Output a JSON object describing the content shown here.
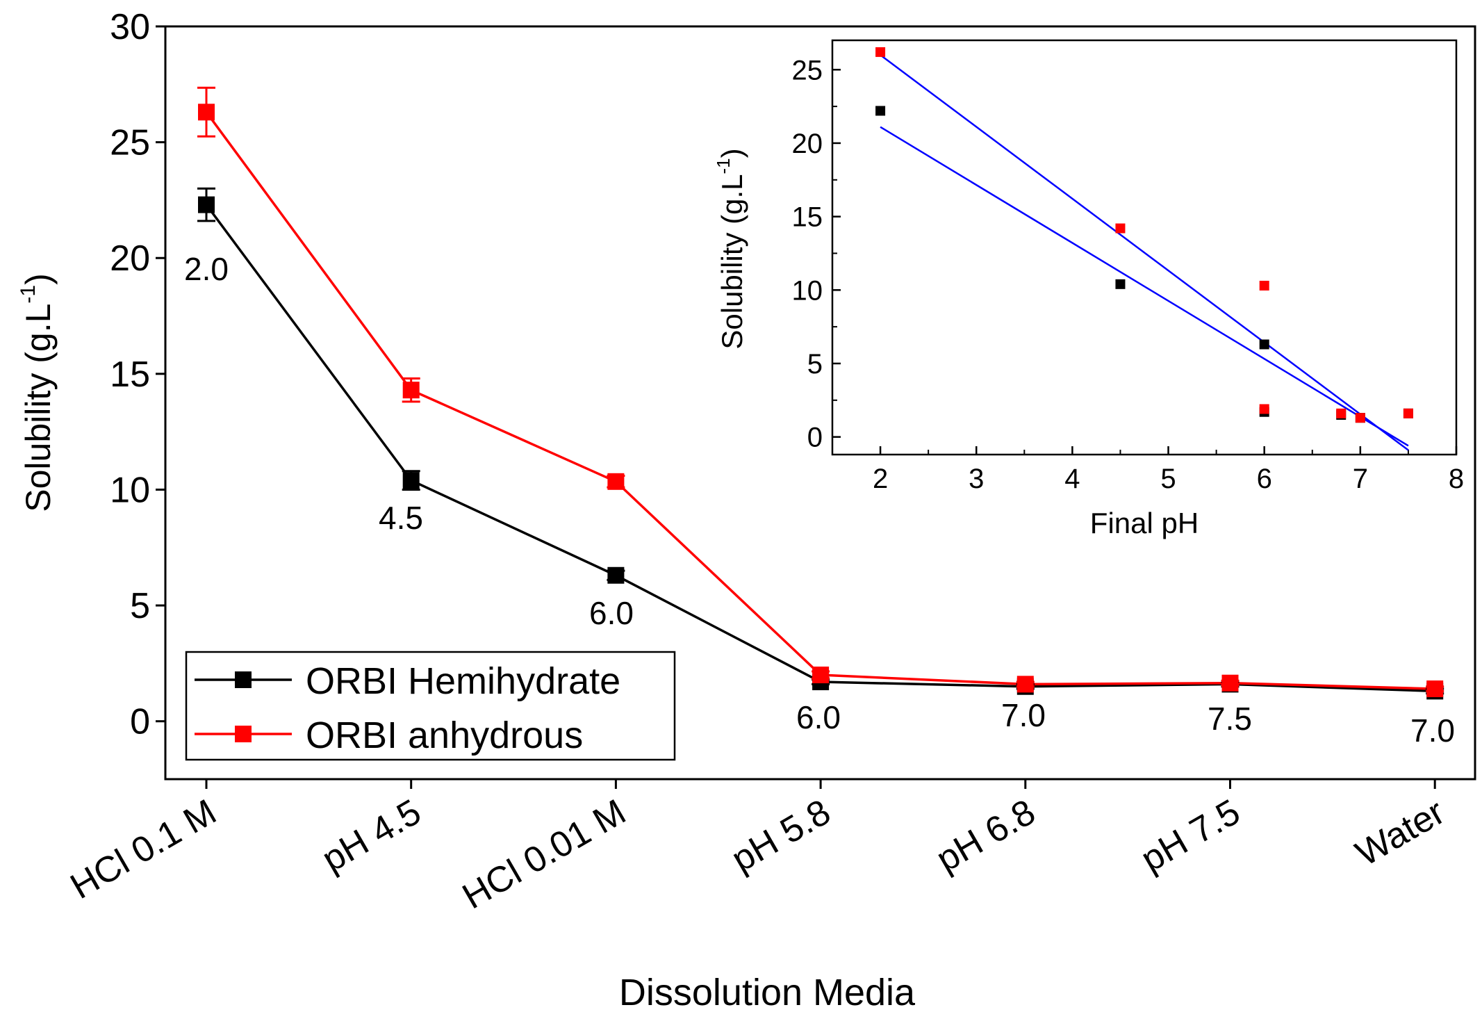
{
  "chart_data": [
    {
      "type": "line",
      "title": "",
      "xlabel": "Dissolution Media",
      "ylabel_main": "Solubility (g.L",
      "ylabel_sup": "-1",
      "ylabel_close": ")",
      "ylim": [
        -2.5,
        30
      ],
      "yticks": [
        0,
        5,
        10,
        15,
        20,
        25,
        30
      ],
      "ytick_labels": [
        "0",
        "5",
        "10",
        "15",
        "20",
        "25",
        "30"
      ],
      "categories": [
        "HCl 0.1 M",
        "pH 4.5",
        "HCl 0.01 M",
        "pH 5.8",
        "pH 6.8",
        "pH 7.5",
        "Water"
      ],
      "series": [
        {
          "name": "ORBI Hemihydrate",
          "color": "#000000",
          "values": [
            22.3,
            10.4,
            6.3,
            1.7,
            1.5,
            1.6,
            1.3
          ],
          "errors": [
            0.7,
            0.4,
            0.2,
            0.1,
            0.1,
            0.1,
            0.1
          ]
        },
        {
          "name": "ORBI anhydrous",
          "color": "#ff0000",
          "values": [
            26.3,
            14.3,
            10.35,
            2.0,
            1.6,
            1.65,
            1.4
          ],
          "errors": [
            1.05,
            0.5,
            0.25,
            0.15,
            0.1,
            0.1,
            0.1
          ]
        }
      ],
      "annotations": [
        "2.0",
        "4.5",
        "6.0",
        "6.0",
        "7.0",
        "7.5",
        "7.0"
      ],
      "legend": {
        "position": "bottom-left",
        "entries": [
          "ORBI Hemihydrate",
          "ORBI anhydrous"
        ]
      }
    },
    {
      "type": "scatter",
      "title": "",
      "xlabel": "Final pH",
      "ylabel_main": "Solubility (g.L",
      "ylabel_sup": "-1",
      "ylabel_close": ")",
      "xlim": [
        1.5,
        8
      ],
      "ylim": [
        -1.2,
        27
      ],
      "xticks": [
        2,
        3,
        4,
        5,
        6,
        7,
        8
      ],
      "xtick_labels": [
        "2",
        "3",
        "4",
        "5",
        "6",
        "7",
        "8"
      ],
      "yticks": [
        0,
        5,
        10,
        15,
        20,
        25
      ],
      "ytick_labels": [
        "0",
        "5",
        "10",
        "15",
        "20",
        "25"
      ],
      "series": [
        {
          "name": "ORBI Hemihydrate",
          "color": "#000000",
          "x": [
            2,
            4.5,
            6,
            6,
            6.8,
            7.5,
            7
          ],
          "y": [
            22.2,
            10.4,
            6.3,
            1.7,
            1.5,
            1.6,
            1.3
          ]
        },
        {
          "name": "ORBI anhydrous",
          "color": "#ff0000",
          "x": [
            2,
            4.5,
            6,
            6,
            6.8,
            7.5,
            7
          ],
          "y": [
            26.2,
            14.2,
            10.3,
            1.9,
            1.6,
            1.6,
            1.3
          ]
        }
      ],
      "fits": [
        {
          "name": "Hemihydrate fit",
          "color": "#0000ff",
          "x": [
            2,
            7.5
          ],
          "y": [
            21.1,
            -0.6
          ]
        },
        {
          "name": "Anhydrous fit",
          "color": "#0000ff",
          "x": [
            2,
            7.5
          ],
          "y": [
            26.0,
            -0.9
          ]
        }
      ]
    }
  ]
}
